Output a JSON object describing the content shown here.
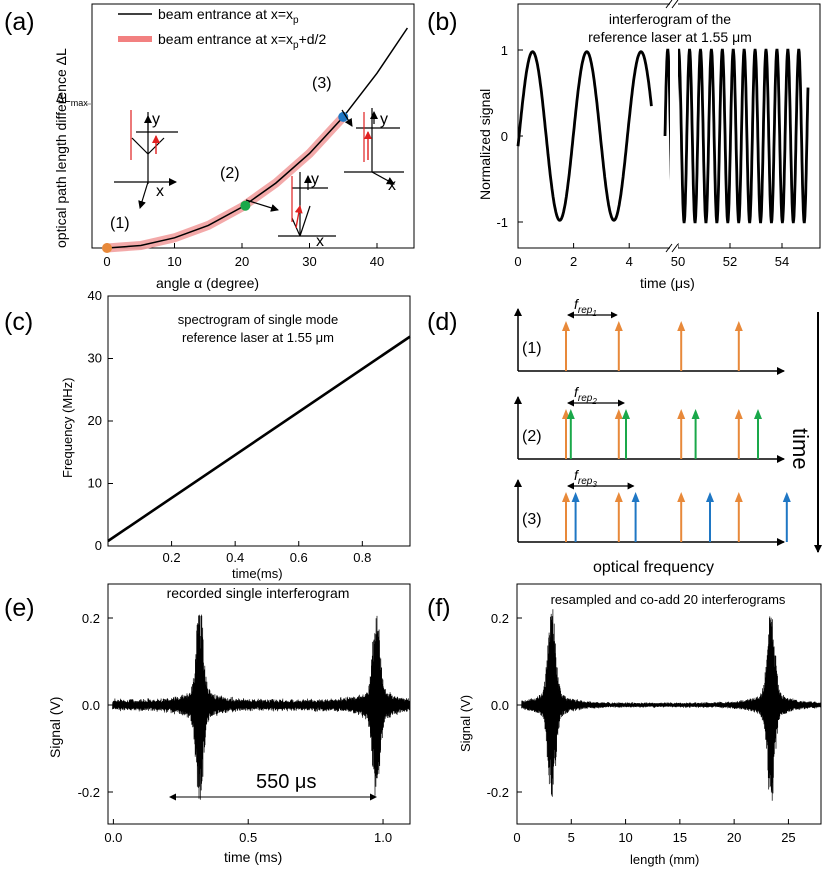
{
  "panels": {
    "a": "(a)",
    "b": "(b)",
    "c": "(c)",
    "d": "(d)",
    "e": "(e)",
    "f": "(f)"
  },
  "colors": {
    "orange": "#e8893a",
    "green": "#1aa84a",
    "blue": "#1f77c4",
    "pink": "#f2a0a0",
    "red": "#e02020",
    "black": "#000000"
  },
  "chart_data": [
    {
      "id": "a",
      "type": "line",
      "xlabel": "angle α (degree)",
      "ylabel": "optical path length difference ΔL",
      "xlim": [
        0,
        45
      ],
      "xticks": [
        "0",
        "10",
        "20",
        "30",
        "40"
      ],
      "ymark": "ΔL",
      "ymark_sub": "max",
      "legend": [
        {
          "text": "beam entrance at x=x",
          "sub": "p",
          "suffix": "",
          "style": "black"
        },
        {
          "text": "beam entrance at x=x",
          "sub": "p",
          "suffix": "+d/2",
          "style": "pink"
        }
      ],
      "series": [
        {
          "x": [
            0,
            5,
            10,
            15,
            20,
            25,
            30,
            35,
            40,
            44.5
          ],
          "y": [
            0,
            0.018,
            0.072,
            0.16,
            0.29,
            0.46,
            0.67,
            0.93,
            1.24,
            1.56
          ]
        }
      ],
      "highlight_xmax": 35,
      "points": [
        {
          "label": "(1)",
          "x": 0,
          "y": 0,
          "color": "orange"
        },
        {
          "label": "(2)",
          "x": 20.5,
          "y": 0.3,
          "color": "green"
        },
        {
          "label": "(3)",
          "x": 35,
          "y": 0.93,
          "color": "blue"
        }
      ],
      "axis_letters": {
        "x": "x",
        "y": "y"
      }
    },
    {
      "id": "b",
      "type": "line",
      "title": [
        "interferogram of the",
        "reference laser at 1.55 μm"
      ],
      "xlabel": "time (μs)",
      "ylabel": "Normalized signal",
      "xticks_left": [
        "0",
        "2",
        "4"
      ],
      "xticks_right": [
        "50",
        "52",
        "54"
      ],
      "yticks": [
        "1",
        "0",
        "-1"
      ],
      "segments": [
        {
          "t_start": 0,
          "t_end": 4.8,
          "period": 1.95,
          "phase_shift": -0.45
        },
        {
          "t_start": 49.5,
          "t_end": 55,
          "period": 0.42,
          "phase_shift": 0
        }
      ]
    },
    {
      "id": "c",
      "type": "line",
      "title": [
        "spectrogram of single mode",
        "reference laser at 1.55 μm"
      ],
      "xlabel": "time(ms)",
      "ylabel": "Frequency (MHz)",
      "xlim": [
        0,
        0.95
      ],
      "ylim": [
        0,
        40
      ],
      "xticks": [
        "0.2",
        "0.4",
        "0.6",
        "0.8"
      ],
      "yticks": [
        "0",
        "10",
        "20",
        "30",
        "40"
      ],
      "x": [
        0,
        0.95
      ],
      "y": [
        0.8,
        33.5
      ]
    },
    {
      "id": "d",
      "type": "diagram",
      "xlabel": "optical frequency",
      "time_label": "time",
      "rows": [
        {
          "label": "(1)",
          "rep": "f",
          "rep_sub": "rep",
          "rep_num": "1",
          "orange": [
            0.2,
            0.42,
            0.68,
            0.92
          ],
          "second": [],
          "second_color": "orange"
        },
        {
          "label": "(2)",
          "rep": "f",
          "rep_sub": "rep",
          "rep_num": "2",
          "orange": [
            0.2,
            0.42,
            0.68,
            0.92
          ],
          "second": [
            0.22,
            0.45,
            0.74,
            1.0
          ],
          "second_color": "green"
        },
        {
          "label": "(3)",
          "rep": "f",
          "rep_sub": "rep",
          "rep_num": "3",
          "orange": [
            0.2,
            0.42,
            0.68,
            0.92
          ],
          "second": [
            0.24,
            0.49,
            0.8,
            1.12
          ],
          "second_color": "blue"
        }
      ]
    },
    {
      "id": "e",
      "type": "line",
      "title": "recorded single interferogram",
      "xlabel": "time (ms)",
      "ylabel": "Signal (V)",
      "xlim": [
        -0.02,
        1.1
      ],
      "ylim": [
        -0.26,
        0.26
      ],
      "xticks": [
        "0.0",
        "0.5",
        "1.0"
      ],
      "yticks": [
        "0.2",
        "0.0",
        "-0.2"
      ],
      "bursts": [
        0.32,
        0.975
      ],
      "peak": 0.22,
      "trough": -0.22,
      "annotation": "550 μs"
    },
    {
      "id": "f",
      "type": "line",
      "title": "resampled and co-add 20 interferograms",
      "xlabel": "length (mm)",
      "ylabel": "Signal (V)",
      "xlim": [
        0,
        28
      ],
      "ylim": [
        -0.26,
        0.26
      ],
      "xticks": [
        "0",
        "5",
        "10",
        "15",
        "20",
        "25"
      ],
      "yticks": [
        "0.2",
        "0.0",
        "-0.2"
      ],
      "bursts": [
        3.2,
        23.4
      ],
      "peak": 0.22,
      "trough": -0.22
    }
  ]
}
